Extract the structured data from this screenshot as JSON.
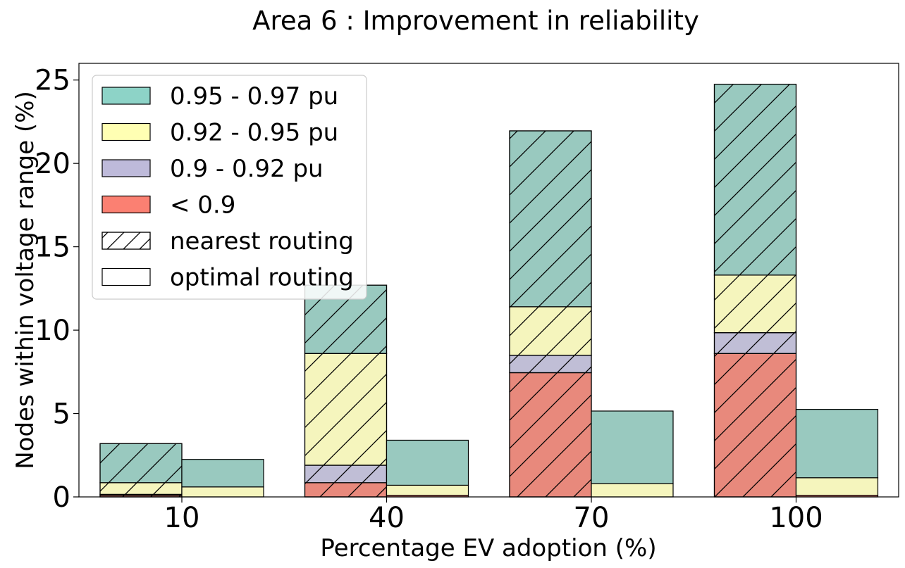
{
  "chart_data": {
    "type": "bar",
    "title": "Area 6 : Improvement in reliability",
    "xlabel": "Percentage EV adoption (%)",
    "ylabel": "Nodes within voltage range (%)",
    "categories": [
      "10",
      "40",
      "70",
      "100"
    ],
    "ylim": [
      0,
      26
    ],
    "yticks": [
      0,
      5,
      10,
      15,
      20,
      25
    ],
    "stacked": true,
    "grouped_by": "routing",
    "groups": [
      {
        "name": "nearest routing",
        "pattern": "hatch",
        "series": [
          {
            "name": "< 0.9",
            "values": [
              0.1,
              0.85,
              7.45,
              8.6
            ]
          },
          {
            "name": "0.9 - 0.92 pu",
            "values": [
              0.05,
              1.05,
              1.05,
              1.25
            ]
          },
          {
            "name": "0.92 - 0.95 pu",
            "values": [
              0.7,
              6.7,
              2.9,
              3.45
            ]
          },
          {
            "name": "0.95 - 0.97 pu",
            "values": [
              2.35,
              4.1,
              10.55,
              11.45
            ]
          }
        ]
      },
      {
        "name": "optimal routing",
        "pattern": "solid",
        "series": [
          {
            "name": "< 0.9",
            "values": [
              0.0,
              0.1,
              0.0,
              0.1
            ]
          },
          {
            "name": "0.9 - 0.92 pu",
            "values": [
              0.0,
              0.0,
              0.0,
              0.0
            ]
          },
          {
            "name": "0.92 - 0.95 pu",
            "values": [
              0.6,
              0.6,
              0.8,
              1.05
            ]
          },
          {
            "name": "0.95 - 0.97 pu",
            "values": [
              1.65,
              2.7,
              4.35,
              4.1
            ]
          }
        ]
      }
    ],
    "legend": {
      "placement": "top-left",
      "entries": [
        {
          "label": "0.95 - 0.97 pu",
          "color": "#8dd3c7",
          "pattern": "solid"
        },
        {
          "label": "0.92 - 0.95 pu",
          "color": "#ffffb3",
          "pattern": "solid"
        },
        {
          "label": "0.9 - 0.92 pu",
          "color": "#bebada",
          "pattern": "solid"
        },
        {
          "label": "< 0.9",
          "color": "#fb8072",
          "pattern": "solid"
        },
        {
          "label": "nearest routing",
          "color": "#ffffff",
          "pattern": "hatch"
        },
        {
          "label": "optimal routing",
          "color": "#ffffff",
          "pattern": "solid"
        }
      ]
    },
    "bar_colors": {
      "< 0.9": "#e8897c",
      "0.9 - 0.92 pu": "#c0bed6",
      "0.92 - 0.95 pu": "#f5f5bd",
      "0.95 - 0.97 pu": "#99c9bf"
    },
    "grid": false
  }
}
